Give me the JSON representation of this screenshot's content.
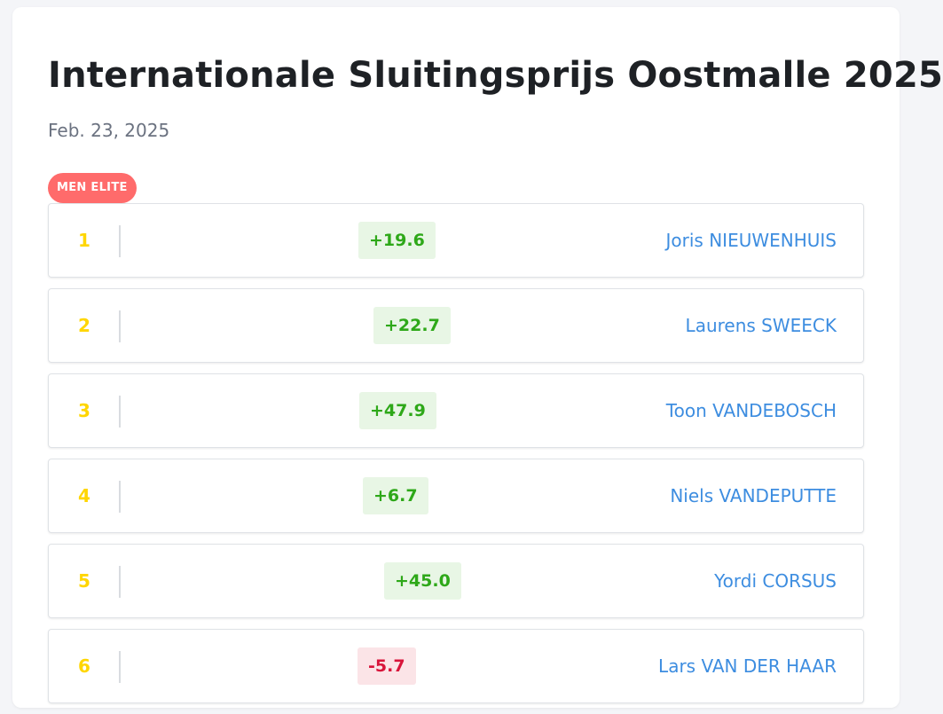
{
  "race": {
    "title": "Internationale Sluitingsprijs Oostmalle 2025",
    "date": "Feb. 23, 2025",
    "category": "MEN ELITE"
  },
  "colors": {
    "rank": "#ffd600",
    "rider_link": "#3d8de0",
    "positive": "#2ea819",
    "positive_bg": "#e8f6e5",
    "negative": "#d8143a",
    "negative_bg": "#fbe4e7",
    "badge_bg": "#ff6b6b"
  },
  "results": [
    {
      "rank": "1",
      "delta": "+19.6",
      "sign": "positive",
      "rider": "Joris NIEUWENHUIS"
    },
    {
      "rank": "2",
      "delta": "+22.7",
      "sign": "positive",
      "rider": "Laurens SWEECK"
    },
    {
      "rank": "3",
      "delta": "+47.9",
      "sign": "positive",
      "rider": "Toon VANDEBOSCH"
    },
    {
      "rank": "4",
      "delta": "+6.7",
      "sign": "positive",
      "rider": "Niels VANDEPUTTE"
    },
    {
      "rank": "5",
      "delta": "+45.0",
      "sign": "positive",
      "rider": "Yordi CORSUS"
    },
    {
      "rank": "6",
      "delta": "-5.7",
      "sign": "negative",
      "rider": "Lars VAN DER HAAR"
    }
  ]
}
